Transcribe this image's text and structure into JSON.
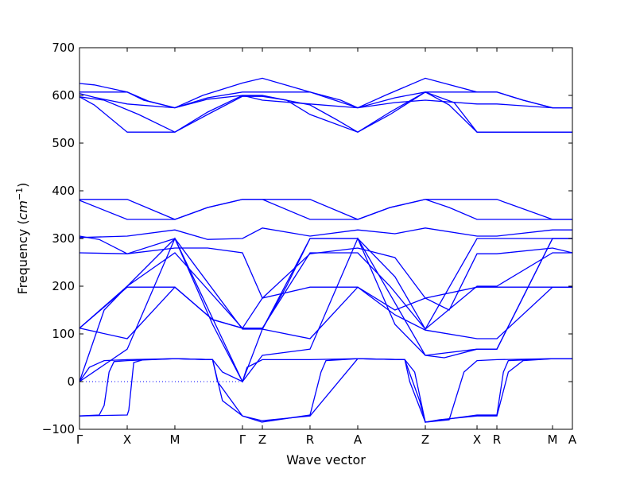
{
  "chart_data": {
    "type": "line",
    "title": "",
    "xlabel": "Wave vector",
    "ylabel_text": "Frequency (",
    "ylabel_unit_base": "cm",
    "ylabel_unit_exp": "−1",
    "ylabel_close": ")",
    "ylim": [
      -100,
      700
    ],
    "yticks": [
      -100,
      0,
      100,
      200,
      300,
      400,
      500,
      600,
      700
    ],
    "xlim": [
      0,
      1
    ],
    "grid": false,
    "legend": "none",
    "line_color": "#0000ff",
    "zero_line_color": "#0000ff",
    "kpoints": [
      {
        "label": "Γ",
        "x": 0.0
      },
      {
        "label": "X",
        "x": 0.0968
      },
      {
        "label": "M",
        "x": 0.1935
      },
      {
        "label": "Γ",
        "x": 0.3306
      },
      {
        "label": "Z",
        "x": 0.371
      },
      {
        "label": "R",
        "x": 0.4677
      },
      {
        "label": "A",
        "x": 0.5645
      },
      {
        "label": "Z",
        "x": 0.7016
      },
      {
        "label": "X",
        "x": 0.8065
      },
      {
        "label": "R",
        "x": 0.8468
      },
      {
        "label": "M",
        "x": 0.9597
      },
      {
        "label": "A",
        "x": 1.0
      }
    ],
    "series": [
      {
        "values": [
          [
            0,
            625
          ],
          [
            0.03,
            622
          ],
          [
            0.0968,
            607
          ],
          [
            0.14,
            588
          ],
          [
            0.1935,
            574
          ],
          [
            0.25,
            600
          ],
          [
            0.3306,
            626
          ],
          [
            0.371,
            636
          ],
          [
            0.4677,
            607
          ],
          [
            0.5645,
            574
          ],
          [
            0.62,
            600
          ],
          [
            0.7016,
            636
          ],
          [
            0.8065,
            607
          ],
          [
            0.8468,
            607
          ],
          [
            0.9,
            590
          ],
          [
            0.9597,
            574
          ],
          [
            1.0,
            574
          ]
        ]
      },
      {
        "values": [
          [
            0,
            607
          ],
          [
            0.0968,
            607
          ],
          [
            0.13,
            590
          ],
          [
            0.1935,
            574
          ],
          [
            0.26,
            595
          ],
          [
            0.3306,
            607
          ],
          [
            0.371,
            607
          ],
          [
            0.4677,
            607
          ],
          [
            0.53,
            590
          ],
          [
            0.5645,
            574
          ],
          [
            0.64,
            595
          ],
          [
            0.7016,
            607
          ],
          [
            0.8065,
            607
          ],
          [
            0.8468,
            607
          ],
          [
            0.9,
            590
          ],
          [
            0.9597,
            574
          ],
          [
            1.0,
            574
          ]
        ]
      },
      {
        "values": [
          [
            0,
            604
          ],
          [
            0.03,
            596
          ],
          [
            0.0968,
            582
          ],
          [
            0.1935,
            574
          ],
          [
            0.26,
            592
          ],
          [
            0.3306,
            600
          ],
          [
            0.371,
            590
          ],
          [
            0.4677,
            582
          ],
          [
            0.5645,
            574
          ],
          [
            0.64,
            585
          ],
          [
            0.7016,
            590
          ],
          [
            0.8065,
            582
          ],
          [
            0.8468,
            582
          ],
          [
            0.9597,
            574
          ],
          [
            1.0,
            574
          ]
        ]
      },
      {
        "values": [
          [
            0,
            597
          ],
          [
            0.03,
            580
          ],
          [
            0.0968,
            523
          ],
          [
            0.1935,
            523
          ],
          [
            0.26,
            565
          ],
          [
            0.3306,
            600
          ],
          [
            0.371,
            600
          ],
          [
            0.4677,
            580
          ],
          [
            0.52,
            550
          ],
          [
            0.5645,
            523
          ],
          [
            0.63,
            565
          ],
          [
            0.7016,
            607
          ],
          [
            0.75,
            580
          ],
          [
            0.8065,
            523
          ],
          [
            0.8468,
            523
          ],
          [
            0.9597,
            523
          ],
          [
            1.0,
            523
          ]
        ]
      },
      {
        "values": [
          [
            0,
            597
          ],
          [
            0.05,
            590
          ],
          [
            0.12,
            560
          ],
          [
            0.1935,
            523
          ],
          [
            0.26,
            560
          ],
          [
            0.3306,
            598
          ],
          [
            0.371,
            598
          ],
          [
            0.42,
            590
          ],
          [
            0.4677,
            560
          ],
          [
            0.5645,
            523
          ],
          [
            0.63,
            560
          ],
          [
            0.7016,
            607
          ],
          [
            0.76,
            585
          ],
          [
            0.8065,
            523
          ],
          [
            0.8468,
            523
          ],
          [
            0.9597,
            523
          ],
          [
            1.0,
            523
          ]
        ]
      },
      {
        "values": [
          [
            0,
            382
          ],
          [
            0.0968,
            382
          ],
          [
            0.1935,
            340
          ],
          [
            0.26,
            365
          ],
          [
            0.3306,
            382
          ],
          [
            0.371,
            382
          ],
          [
            0.4677,
            382
          ],
          [
            0.5645,
            340
          ],
          [
            0.63,
            365
          ],
          [
            0.7016,
            382
          ],
          [
            0.8065,
            382
          ],
          [
            0.8468,
            382
          ],
          [
            0.9597,
            340
          ],
          [
            1.0,
            340
          ]
        ]
      },
      {
        "values": [
          [
            0,
            380
          ],
          [
            0.0968,
            340
          ],
          [
            0.1935,
            340
          ],
          [
            0.26,
            365
          ],
          [
            0.3306,
            382
          ],
          [
            0.371,
            382
          ],
          [
            0.4677,
            340
          ],
          [
            0.5645,
            340
          ],
          [
            0.63,
            365
          ],
          [
            0.7016,
            382
          ],
          [
            0.75,
            365
          ],
          [
            0.8065,
            340
          ],
          [
            0.8468,
            340
          ],
          [
            0.9597,
            340
          ],
          [
            1.0,
            340
          ]
        ]
      },
      {
        "values": [
          [
            0,
            302
          ],
          [
            0.0968,
            305
          ],
          [
            0.1935,
            318
          ],
          [
            0.26,
            298
          ],
          [
            0.3306,
            300
          ],
          [
            0.371,
            322
          ],
          [
            0.4677,
            305
          ],
          [
            0.5645,
            318
          ],
          [
            0.64,
            310
          ],
          [
            0.7016,
            322
          ],
          [
            0.8065,
            305
          ],
          [
            0.8468,
            305
          ],
          [
            0.9597,
            318
          ],
          [
            1.0,
            318
          ]
        ]
      },
      {
        "values": [
          [
            0,
            270
          ],
          [
            0.0968,
            268
          ],
          [
            0.1935,
            280
          ],
          [
            0.26,
            280
          ],
          [
            0.3306,
            270
          ],
          [
            0.371,
            175
          ],
          [
            0.4677,
            268
          ],
          [
            0.5645,
            280
          ],
          [
            0.64,
            260
          ],
          [
            0.7016,
            175
          ],
          [
            0.75,
            150
          ],
          [
            0.8065,
            268
          ],
          [
            0.8468,
            268
          ],
          [
            0.9597,
            280
          ],
          [
            1.0,
            270
          ]
        ]
      },
      {
        "values": [
          [
            0,
            305
          ],
          [
            0.04,
            298
          ],
          [
            0.0968,
            268
          ],
          [
            0.1935,
            300
          ],
          [
            0.3306,
            110
          ],
          [
            0.371,
            110
          ],
          [
            0.4677,
            300
          ],
          [
            0.5645,
            300
          ],
          [
            0.64,
            220
          ],
          [
            0.7016,
            110
          ],
          [
            0.8065,
            300
          ],
          [
            0.8468,
            300
          ],
          [
            0.9597,
            300
          ],
          [
            1.0,
            300
          ]
        ]
      },
      {
        "values": [
          [
            0,
            112
          ],
          [
            0.0968,
            200
          ],
          [
            0.1935,
            270
          ],
          [
            0.3306,
            112
          ],
          [
            0.371,
            112
          ],
          [
            0.4677,
            270
          ],
          [
            0.5645,
            270
          ],
          [
            0.63,
            200
          ],
          [
            0.7016,
            110
          ],
          [
            0.8065,
            200
          ],
          [
            0.8468,
            200
          ],
          [
            0.9597,
            270
          ],
          [
            1.0,
            270
          ]
        ]
      },
      {
        "values": [
          [
            0,
            112
          ],
          [
            0.0968,
            198
          ],
          [
            0.1935,
            198
          ],
          [
            0.27,
            130
          ],
          [
            0.3306,
            112
          ],
          [
            0.371,
            175
          ],
          [
            0.4677,
            198
          ],
          [
            0.5645,
            198
          ],
          [
            0.64,
            150
          ],
          [
            0.7016,
            175
          ],
          [
            0.8065,
            198
          ],
          [
            0.8468,
            198
          ],
          [
            0.9597,
            198
          ],
          [
            1.0,
            198
          ]
        ]
      },
      {
        "values": [
          [
            0,
            112
          ],
          [
            0.0968,
            90
          ],
          [
            0.1935,
            198
          ],
          [
            0.27,
            130
          ],
          [
            0.3306,
            112
          ],
          [
            0.371,
            110
          ],
          [
            0.4677,
            90
          ],
          [
            0.5645,
            198
          ],
          [
            0.64,
            140
          ],
          [
            0.7016,
            108
          ],
          [
            0.8065,
            90
          ],
          [
            0.8468,
            90
          ],
          [
            0.9597,
            198
          ],
          [
            1.0,
            198
          ]
        ]
      },
      {
        "values": [
          [
            0,
            0
          ],
          [
            0.0968,
            68
          ],
          [
            0.1935,
            300
          ],
          [
            0.27,
            120
          ],
          [
            0.3306,
            0
          ],
          [
            0.371,
            55
          ],
          [
            0.4677,
            68
          ],
          [
            0.5645,
            300
          ],
          [
            0.64,
            120
          ],
          [
            0.7016,
            55
          ],
          [
            0.8065,
            68
          ],
          [
            0.8468,
            68
          ],
          [
            0.9597,
            300
          ],
          [
            1.0,
            300
          ]
        ]
      },
      {
        "values": [
          [
            0,
            0
          ],
          [
            0.05,
            150
          ],
          [
            0.0968,
            200
          ],
          [
            0.1935,
            300
          ],
          [
            0.3306,
            0
          ],
          [
            0.371,
            110
          ],
          [
            0.42,
            200
          ],
          [
            0.4677,
            300
          ],
          [
            0.5645,
            300
          ],
          [
            0.7016,
            55
          ],
          [
            0.74,
            50
          ],
          [
            0.8065,
            68
          ],
          [
            0.8468,
            68
          ],
          [
            0.9597,
            300
          ],
          [
            1.0,
            300
          ]
        ]
      },
      {
        "values": [
          [
            0,
            0
          ],
          [
            0.02,
            30
          ],
          [
            0.05,
            44
          ],
          [
            0.0968,
            46
          ],
          [
            0.1935,
            48
          ],
          [
            0.27,
            46
          ],
          [
            0.29,
            20
          ],
          [
            0.3306,
            0
          ],
          [
            0.34,
            30
          ],
          [
            0.371,
            46
          ],
          [
            0.4677,
            46
          ],
          [
            0.5645,
            48
          ],
          [
            0.66,
            46
          ],
          [
            0.68,
            20
          ],
          [
            0.7016,
            -85
          ],
          [
            0.73,
            -80
          ],
          [
            0.8065,
            -72
          ],
          [
            0.8468,
            -72
          ],
          [
            0.87,
            20
          ],
          [
            0.9,
            44
          ],
          [
            0.9597,
            48
          ],
          [
            1.0,
            48
          ]
        ]
      },
      {
        "values": [
          [
            0,
            -72
          ],
          [
            0.0968,
            -70
          ],
          [
            0.1,
            -60
          ],
          [
            0.11,
            40
          ],
          [
            0.13,
            46
          ],
          [
            0.1935,
            48
          ],
          [
            0.27,
            46
          ],
          [
            0.29,
            -40
          ],
          [
            0.3306,
            -72
          ],
          [
            0.371,
            -82
          ],
          [
            0.4677,
            -72
          ],
          [
            0.5645,
            48
          ],
          [
            0.66,
            46
          ],
          [
            0.69,
            -40
          ],
          [
            0.7016,
            -85
          ],
          [
            0.75,
            -80
          ],
          [
            0.78,
            20
          ],
          [
            0.8065,
            44
          ],
          [
            0.8468,
            46
          ],
          [
            0.9597,
            48
          ],
          [
            1.0,
            48
          ]
        ]
      },
      {
        "values": [
          [
            0,
            -72
          ],
          [
            0.04,
            -70
          ],
          [
            0.05,
            -50
          ],
          [
            0.06,
            20
          ],
          [
            0.07,
            42
          ],
          [
            0.0968,
            44
          ],
          [
            0.1935,
            48
          ],
          [
            0.27,
            46
          ],
          [
            0.28,
            0
          ],
          [
            0.3306,
            -72
          ],
          [
            0.37,
            -85
          ],
          [
            0.4677,
            -70
          ],
          [
            0.49,
            20
          ],
          [
            0.5,
            44
          ],
          [
            0.5645,
            48
          ],
          [
            0.66,
            46
          ],
          [
            0.67,
            0
          ],
          [
            0.7016,
            -85
          ],
          [
            0.8065,
            -70
          ],
          [
            0.8468,
            -70
          ],
          [
            0.86,
            20
          ],
          [
            0.87,
            44
          ],
          [
            0.9597,
            48
          ],
          [
            1.0,
            48
          ]
        ]
      },
      {
        "values": [
          [
            0,
            0
          ],
          [
            0.3306,
            0
          ]
        ]
      }
    ]
  }
}
